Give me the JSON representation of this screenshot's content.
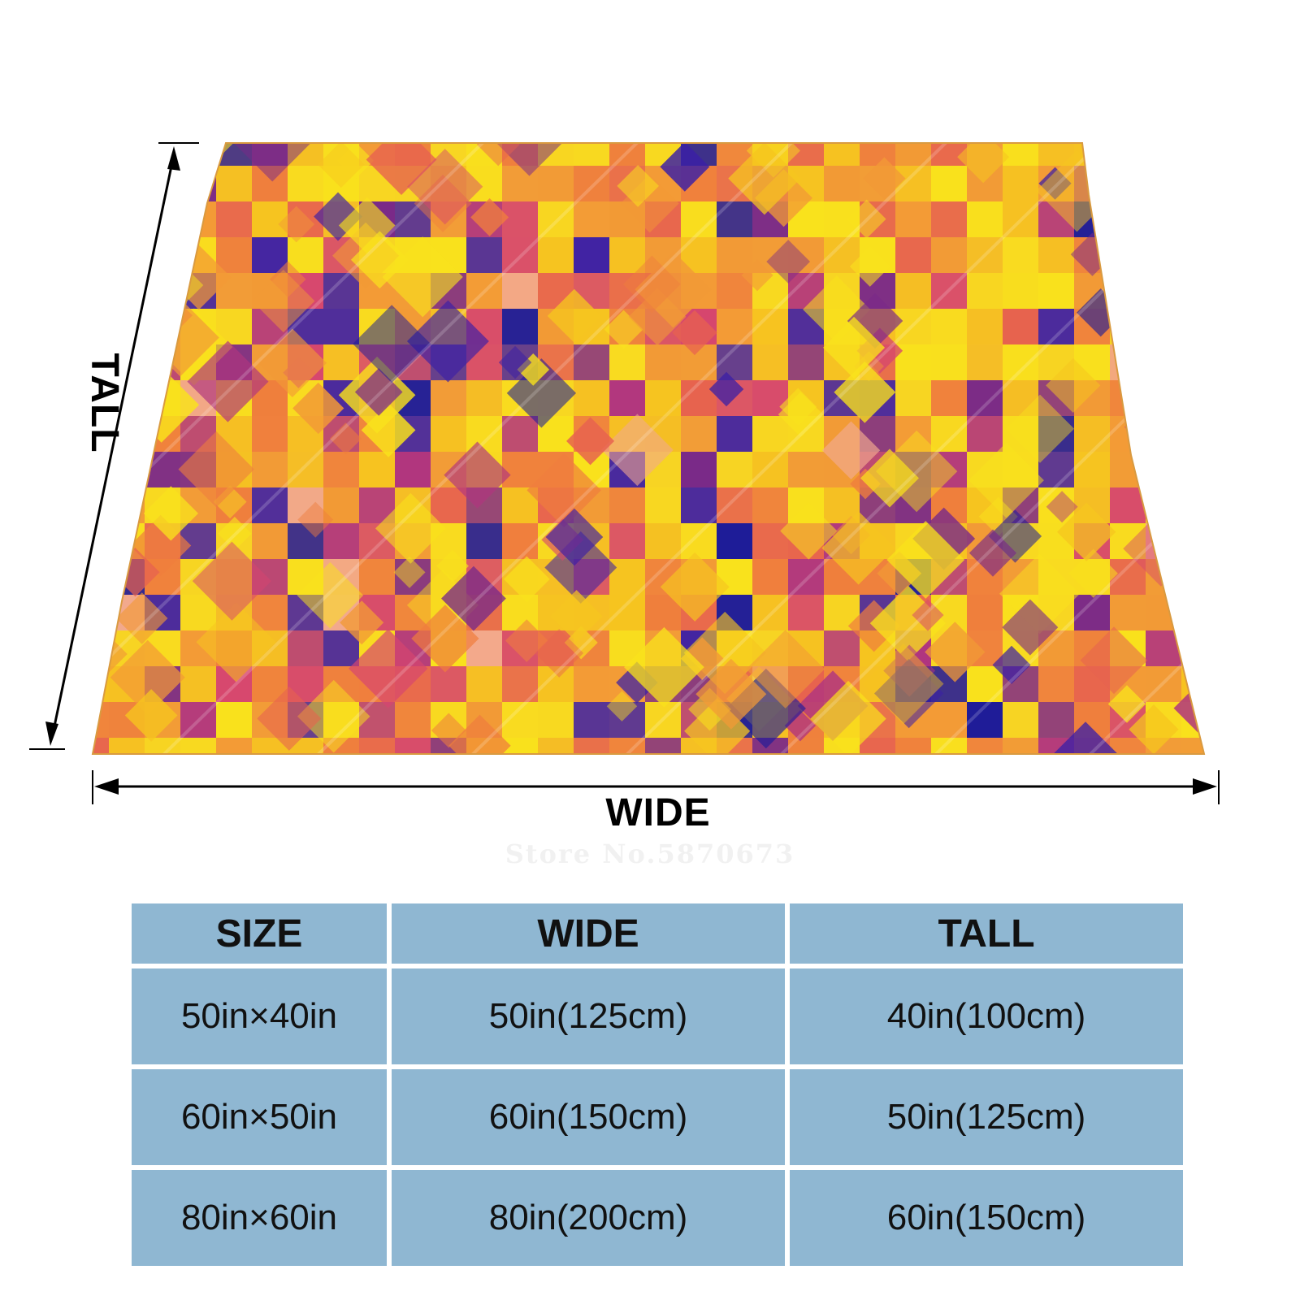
{
  "product": {
    "dimension_labels": {
      "wide": "WIDE",
      "tall": "TALL"
    },
    "watermark": "Store No.5870673",
    "pattern_colors": [
      "#f9e21c",
      "#f6c51f",
      "#f29a36",
      "#ef7e3d",
      "#e7624f",
      "#d6456f",
      "#b0357f",
      "#7a2a88",
      "#3b1fa6",
      "#1b1a9a",
      "#f2a98f"
    ]
  },
  "size_table": {
    "headers": [
      "SIZE",
      "WIDE",
      "TALL"
    ],
    "rows": [
      [
        "50in×40in",
        "50in(125cm)",
        "40in(100cm)"
      ],
      [
        "60in×50in",
        "60in(150cm)",
        "50in(125cm)"
      ],
      [
        "80in×60in",
        "80in(200cm)",
        "60in(150cm)"
      ]
    ],
    "colors": {
      "cell_background": "#8fb7d2",
      "text": "#111111"
    }
  }
}
